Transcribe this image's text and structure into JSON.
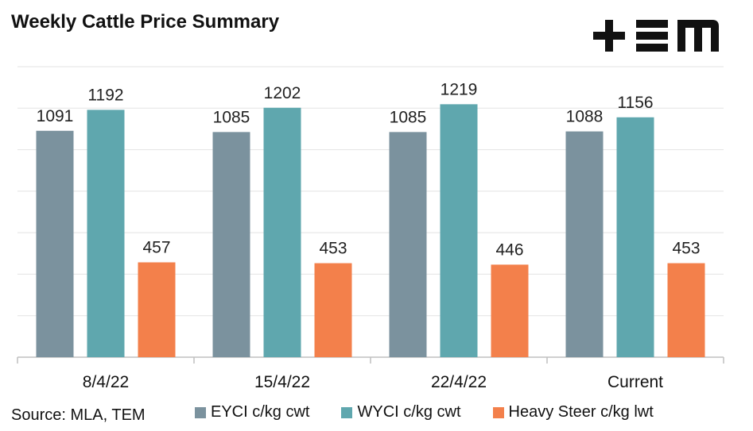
{
  "title": "Weekly Cattle Price Summary",
  "source": "Source: MLA, TEM",
  "logo_text": "+≡M",
  "chart_data": {
    "type": "bar",
    "categories": [
      "8/4/22",
      "15/4/22",
      "22/4/22",
      "Current"
    ],
    "series": [
      {
        "name": "EYCI c/kg cwt",
        "values": [
          1091,
          1085,
          1085,
          1088
        ],
        "color": "#7b929e"
      },
      {
        "name": "WYCI c/kg cwt",
        "values": [
          1192,
          1202,
          1219,
          1156
        ],
        "color": "#5fa7ae"
      },
      {
        "name": "Heavy Steer c/kg lwt",
        "values": [
          457,
          453,
          446,
          453
        ],
        "color": "#f3804b"
      }
    ],
    "ylim": [
      0,
      1400
    ],
    "grid": true,
    "legend": "bottom"
  }
}
